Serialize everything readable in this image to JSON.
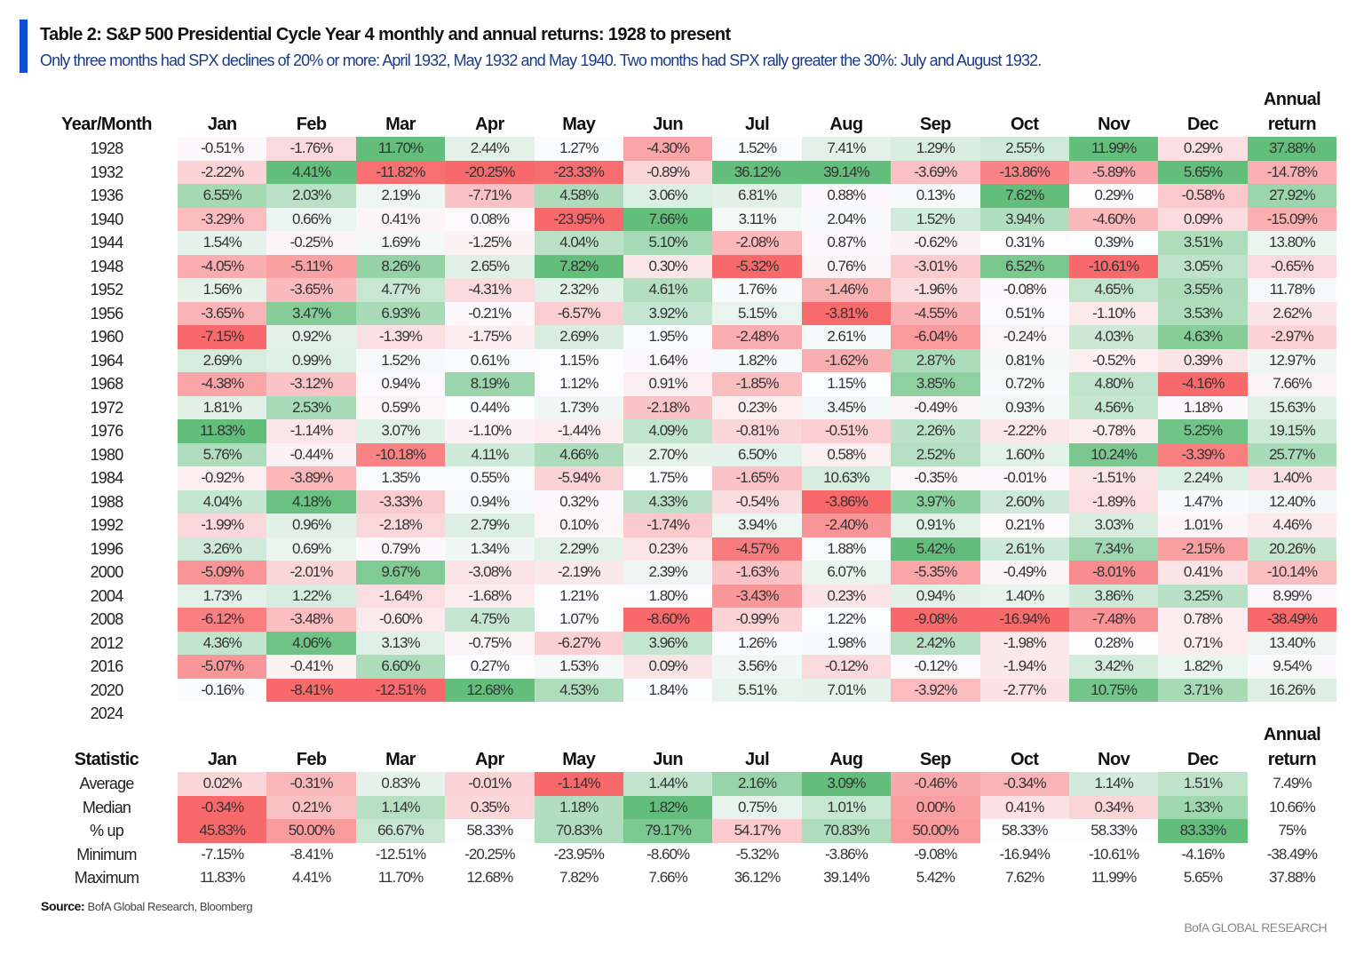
{
  "header": {
    "title": "Table 2: S&P 500 Presidential Cycle Year 4 monthly and annual returns: 1928 to present",
    "subtitle": "Only three months had SPX declines of 20% or more: April 1932, May 1932 and May 1940. Two months had SPX rally greater the 30%: July and August 1932."
  },
  "colors": {
    "negative": "#f8696b",
    "neutral": "#fcfcff",
    "positive": "#63be7b",
    "accent": "#0a4fd6"
  },
  "chart_data": {
    "type": "heatmap",
    "title": "Table 2: S&P 500 Presidential Cycle Year 4 monthly and annual returns: 1928 to present",
    "row_header": "Year/Month",
    "columns": [
      "Jan",
      "Feb",
      "Mar",
      "Apr",
      "May",
      "Jun",
      "Jul",
      "Aug",
      "Sep",
      "Oct",
      "Nov",
      "Dec"
    ],
    "annual_header": [
      "Annual",
      "return"
    ],
    "rows": [
      {
        "year": "1928",
        "values": [
          "-0.51%",
          "-1.76%",
          "11.70%",
          "2.44%",
          "1.27%",
          "-4.30%",
          "1.52%",
          "7.41%",
          "1.29%",
          "2.55%",
          "11.99%",
          "0.29%",
          "37.88%"
        ]
      },
      {
        "year": "1932",
        "values": [
          "-2.22%",
          "4.41%",
          "-11.82%",
          "-20.25%",
          "-23.33%",
          "-0.89%",
          "36.12%",
          "39.14%",
          "-3.69%",
          "-13.86%",
          "-5.89%",
          "5.65%",
          "-14.78%"
        ]
      },
      {
        "year": "1936",
        "values": [
          "6.55%",
          "2.03%",
          "2.19%",
          "-7.71%",
          "4.58%",
          "3.06%",
          "6.81%",
          "0.88%",
          "0.13%",
          "7.62%",
          "0.29%",
          "-0.58%",
          "27.92%"
        ]
      },
      {
        "year": "1940",
        "values": [
          "-3.29%",
          "0.66%",
          "0.41%",
          "0.08%",
          "-23.95%",
          "7.66%",
          "3.11%",
          "2.04%",
          "1.52%",
          "3.94%",
          "-4.60%",
          "0.09%",
          "-15.09%"
        ]
      },
      {
        "year": "1944",
        "values": [
          "1.54%",
          "-0.25%",
          "1.69%",
          "-1.25%",
          "4.04%",
          "5.10%",
          "-2.08%",
          "0.87%",
          "-0.62%",
          "0.31%",
          "0.39%",
          "3.51%",
          "13.80%"
        ]
      },
      {
        "year": "1948",
        "values": [
          "-4.05%",
          "-5.11%",
          "8.26%",
          "2.65%",
          "7.82%",
          "0.30%",
          "-5.32%",
          "0.76%",
          "-3.01%",
          "6.52%",
          "-10.61%",
          "3.05%",
          "-0.65%"
        ]
      },
      {
        "year": "1952",
        "values": [
          "1.56%",
          "-3.65%",
          "4.77%",
          "-4.31%",
          "2.32%",
          "4.61%",
          "1.76%",
          "-1.46%",
          "-1.96%",
          "-0.08%",
          "4.65%",
          "3.55%",
          "11.78%"
        ]
      },
      {
        "year": "1956",
        "values": [
          "-3.65%",
          "3.47%",
          "6.93%",
          "-0.21%",
          "-6.57%",
          "3.92%",
          "5.15%",
          "-3.81%",
          "-4.55%",
          "0.51%",
          "-1.10%",
          "3.53%",
          "2.62%"
        ]
      },
      {
        "year": "1960",
        "values": [
          "-7.15%",
          "0.92%",
          "-1.39%",
          "-1.75%",
          "2.69%",
          "1.95%",
          "-2.48%",
          "2.61%",
          "-6.04%",
          "-0.24%",
          "4.03%",
          "4.63%",
          "-2.97%"
        ]
      },
      {
        "year": "1964",
        "values": [
          "2.69%",
          "0.99%",
          "1.52%",
          "0.61%",
          "1.15%",
          "1.64%",
          "1.82%",
          "-1.62%",
          "2.87%",
          "0.81%",
          "-0.52%",
          "0.39%",
          "12.97%"
        ]
      },
      {
        "year": "1968",
        "values": [
          "-4.38%",
          "-3.12%",
          "0.94%",
          "8.19%",
          "1.12%",
          "0.91%",
          "-1.85%",
          "1.15%",
          "3.85%",
          "0.72%",
          "4.80%",
          "-4.16%",
          "7.66%"
        ]
      },
      {
        "year": "1972",
        "values": [
          "1.81%",
          "2.53%",
          "0.59%",
          "0.44%",
          "1.73%",
          "-2.18%",
          "0.23%",
          "3.45%",
          "-0.49%",
          "0.93%",
          "4.56%",
          "1.18%",
          "15.63%"
        ]
      },
      {
        "year": "1976",
        "values": [
          "11.83%",
          "-1.14%",
          "3.07%",
          "-1.10%",
          "-1.44%",
          "4.09%",
          "-0.81%",
          "-0.51%",
          "2.26%",
          "-2.22%",
          "-0.78%",
          "5.25%",
          "19.15%"
        ]
      },
      {
        "year": "1980",
        "values": [
          "5.76%",
          "-0.44%",
          "-10.18%",
          "4.11%",
          "4.66%",
          "2.70%",
          "6.50%",
          "0.58%",
          "2.52%",
          "1.60%",
          "10.24%",
          "-3.39%",
          "25.77%"
        ]
      },
      {
        "year": "1984",
        "values": [
          "-0.92%",
          "-3.89%",
          "1.35%",
          "0.55%",
          "-5.94%",
          "1.75%",
          "-1.65%",
          "10.63%",
          "-0.35%",
          "-0.01%",
          "-1.51%",
          "2.24%",
          "1.40%"
        ]
      },
      {
        "year": "1988",
        "values": [
          "4.04%",
          "4.18%",
          "-3.33%",
          "0.94%",
          "0.32%",
          "4.33%",
          "-0.54%",
          "-3.86%",
          "3.97%",
          "2.60%",
          "-1.89%",
          "1.47%",
          "12.40%"
        ]
      },
      {
        "year": "1992",
        "values": [
          "-1.99%",
          "0.96%",
          "-2.18%",
          "2.79%",
          "0.10%",
          "-1.74%",
          "3.94%",
          "-2.40%",
          "0.91%",
          "0.21%",
          "3.03%",
          "1.01%",
          "4.46%"
        ]
      },
      {
        "year": "1996",
        "values": [
          "3.26%",
          "0.69%",
          "0.79%",
          "1.34%",
          "2.29%",
          "0.23%",
          "-4.57%",
          "1.88%",
          "5.42%",
          "2.61%",
          "7.34%",
          "-2.15%",
          "20.26%"
        ]
      },
      {
        "year": "2000",
        "values": [
          "-5.09%",
          "-2.01%",
          "9.67%",
          "-3.08%",
          "-2.19%",
          "2.39%",
          "-1.63%",
          "6.07%",
          "-5.35%",
          "-0.49%",
          "-8.01%",
          "0.41%",
          "-10.14%"
        ]
      },
      {
        "year": "2004",
        "values": [
          "1.73%",
          "1.22%",
          "-1.64%",
          "-1.68%",
          "1.21%",
          "1.80%",
          "-3.43%",
          "0.23%",
          "0.94%",
          "1.40%",
          "3.86%",
          "3.25%",
          "8.99%"
        ]
      },
      {
        "year": "2008",
        "values": [
          "-6.12%",
          "-3.48%",
          "-0.60%",
          "4.75%",
          "1.07%",
          "-8.60%",
          "-0.99%",
          "1.22%",
          "-9.08%",
          "-16.94%",
          "-7.48%",
          "0.78%",
          "-38.49%"
        ]
      },
      {
        "year": "2012",
        "values": [
          "4.36%",
          "4.06%",
          "3.13%",
          "-0.75%",
          "-6.27%",
          "3.96%",
          "1.26%",
          "1.98%",
          "2.42%",
          "-1.98%",
          "0.28%",
          "0.71%",
          "13.40%"
        ]
      },
      {
        "year": "2016",
        "values": [
          "-5.07%",
          "-0.41%",
          "6.60%",
          "0.27%",
          "1.53%",
          "0.09%",
          "3.56%",
          "-0.12%",
          "-0.12%",
          "-1.94%",
          "3.42%",
          "1.82%",
          "9.54%"
        ]
      },
      {
        "year": "2020",
        "values": [
          "-0.16%",
          "-8.41%",
          "-12.51%",
          "12.68%",
          "4.53%",
          "1.84%",
          "5.51%",
          "7.01%",
          "-3.92%",
          "-2.77%",
          "10.75%",
          "3.71%",
          "16.26%"
        ]
      },
      {
        "year": "2024",
        "values": []
      }
    ],
    "stats_header": "Statistic",
    "stats": [
      {
        "name": "Average",
        "colored": true,
        "values": [
          "0.02%",
          "-0.31%",
          "0.83%",
          "-0.01%",
          "-1.14%",
          "1.44%",
          "2.16%",
          "3.09%",
          "-0.46%",
          "-0.34%",
          "1.14%",
          "1.51%",
          "7.49%"
        ]
      },
      {
        "name": "Median",
        "colored": true,
        "values": [
          "-0.34%",
          "0.21%",
          "1.14%",
          "0.35%",
          "1.18%",
          "1.82%",
          "0.75%",
          "1.01%",
          "0.00%",
          "0.41%",
          "0.34%",
          "1.33%",
          "10.66%"
        ]
      },
      {
        "name": "% up",
        "colored": true,
        "values": [
          "45.83%",
          "50.00%",
          "66.67%",
          "58.33%",
          "70.83%",
          "79.17%",
          "54.17%",
          "70.83%",
          "50.00%",
          "58.33%",
          "58.33%",
          "83.33%",
          "75%"
        ]
      },
      {
        "name": "Minimum",
        "colored": false,
        "values": [
          "-7.15%",
          "-8.41%",
          "-12.51%",
          "-20.25%",
          "-23.95%",
          "-8.60%",
          "-5.32%",
          "-3.86%",
          "-9.08%",
          "-16.94%",
          "-10.61%",
          "-4.16%",
          "-38.49%"
        ]
      },
      {
        "name": "Maximum",
        "colored": false,
        "values": [
          "11.83%",
          "4.41%",
          "11.70%",
          "12.68%",
          "7.82%",
          "7.66%",
          "36.12%",
          "39.14%",
          "5.42%",
          "7.62%",
          "11.99%",
          "5.65%",
          "37.88%"
        ]
      }
    ]
  },
  "footer": {
    "source_label": "Source:",
    "source_text": "BofA Global Research, Bloomberg",
    "brand": "BofA GLOBAL RESEARCH"
  }
}
